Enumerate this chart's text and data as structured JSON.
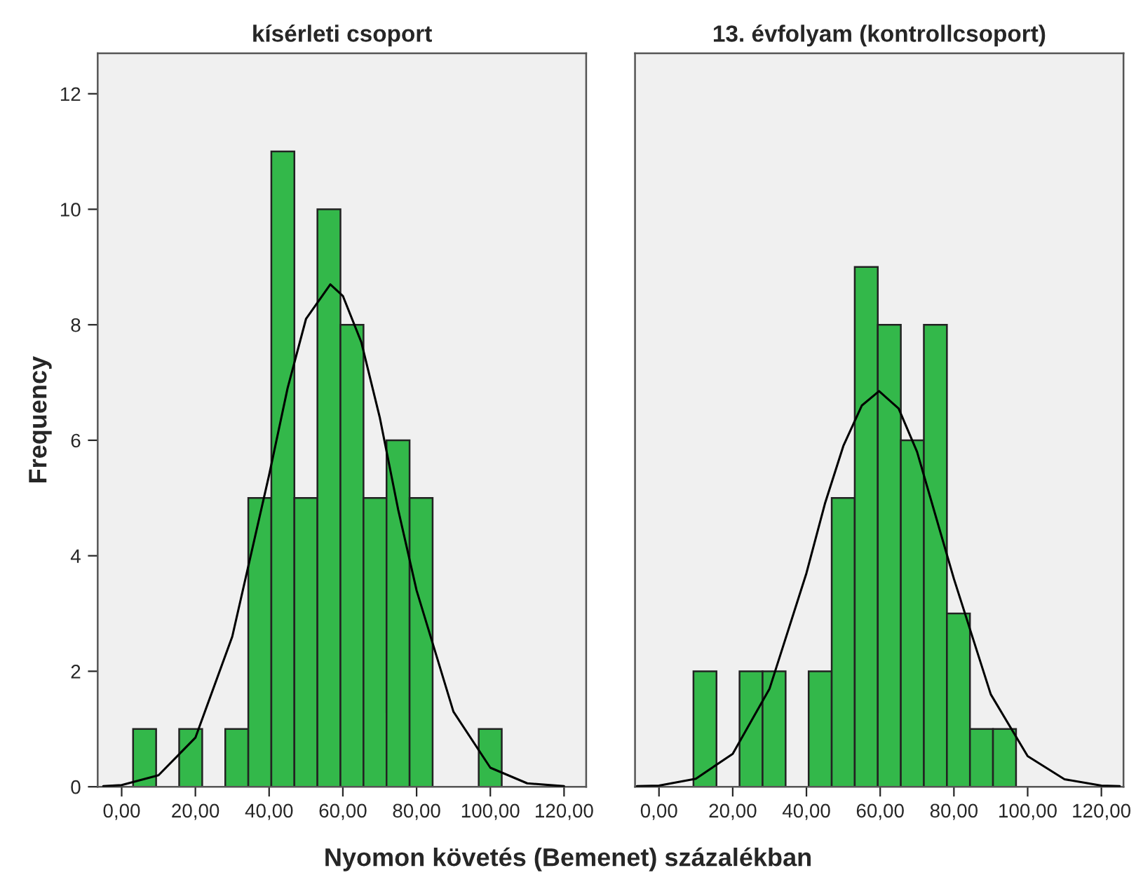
{
  "chart_data": [
    {
      "type": "histogram",
      "title": "kísérleti csoport",
      "xlabel": "Nyomon követés (Bemenet) százalékban",
      "ylabel": "Frequency",
      "series": [
        {
          "type": "histogram",
          "color": "#33b84a",
          "bins": [
            3.1,
            9.35,
            15.6,
            21.85,
            28.1,
            34.35,
            40.6,
            46.85,
            53.1,
            59.35,
            65.6,
            71.85,
            78.1,
            84.35,
            90.6,
            96.85,
            103.1
          ],
          "values": [
            1,
            0,
            1,
            0,
            1,
            5,
            11,
            5,
            10,
            8,
            5,
            6,
            5,
            0,
            0,
            1
          ]
        },
        {
          "type": "line",
          "color": "#000000",
          "x": [
            -5,
            0,
            10,
            20,
            30,
            40,
            45,
            50,
            56.6,
            60,
            65,
            70,
            75,
            80,
            90,
            100,
            110,
            120
          ],
          "values": [
            0.01,
            0.03,
            0.2,
            0.85,
            2.6,
            5.4,
            6.9,
            8.1,
            8.7,
            8.5,
            7.7,
            6.4,
            4.8,
            3.4,
            1.3,
            0.33,
            0.06,
            0.01
          ]
        }
      ],
      "xlim": [
        -6.5,
        126
      ],
      "ylim": [
        0,
        12.7
      ],
      "xticks": [
        {
          "value": 0,
          "label": "0,00"
        },
        {
          "value": 20,
          "label": "20,00"
        },
        {
          "value": 40,
          "label": "40,00"
        },
        {
          "value": 60,
          "label": "60,00"
        },
        {
          "value": 80,
          "label": "80,00"
        },
        {
          "value": 100,
          "label": "100,00"
        },
        {
          "value": 120,
          "label": "120,00"
        }
      ],
      "yticks": [
        0,
        2,
        4,
        6,
        8,
        10,
        12
      ],
      "grid": false,
      "legend": false
    },
    {
      "type": "histogram",
      "title": "13. évfolyam (kontrollcsoport)",
      "series": [
        {
          "type": "histogram",
          "color": "#33b84a",
          "bins": [
            9.35,
            15.6,
            21.85,
            28.1,
            34.35,
            40.6,
            46.85,
            53.1,
            59.35,
            65.6,
            71.85,
            78.1,
            84.35,
            90.6,
            96.85
          ],
          "values": [
            2,
            0,
            2,
            2,
            0,
            2,
            5,
            9,
            8,
            6,
            8,
            3,
            1,
            1
          ]
        },
        {
          "type": "line",
          "color": "#000000",
          "x": [
            -6,
            0,
            10,
            20,
            30,
            40,
            45,
            50,
            55,
            59.7,
            65,
            70,
            75,
            80,
            90,
            100,
            110,
            120,
            125
          ],
          "values": [
            0.01,
            0.02,
            0.14,
            0.57,
            1.7,
            3.7,
            4.9,
            5.9,
            6.6,
            6.85,
            6.55,
            5.8,
            4.7,
            3.6,
            1.6,
            0.53,
            0.13,
            0.02,
            0.01
          ]
        }
      ],
      "xlim": [
        -6.5,
        126
      ],
      "ylim": [
        0,
        12.7
      ],
      "xticks": [
        {
          "value": 0,
          "label": "0,00"
        },
        {
          "value": 20,
          "label": "20,00"
        },
        {
          "value": 40,
          "label": "40,00"
        },
        {
          "value": 60,
          "label": "60,00"
        },
        {
          "value": 80,
          "label": "80,00"
        },
        {
          "value": 100,
          "label": "100,00"
        },
        {
          "value": 120,
          "label": "120,00"
        }
      ],
      "yticks": [
        0,
        2,
        4,
        6,
        8,
        10,
        12
      ],
      "tick_labels": "x",
      "grid": false,
      "legend": false
    }
  ]
}
